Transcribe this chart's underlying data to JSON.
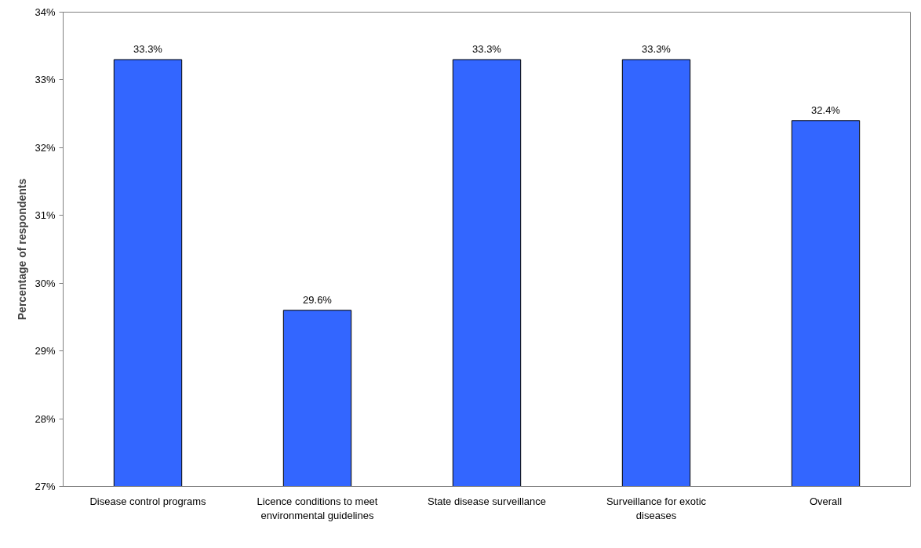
{
  "chart_data": {
    "type": "bar",
    "ylabel": "Percentage of respondents",
    "categories": [
      "Disease control programs",
      "Licence conditions to meet environmental guidelines",
      "State disease surveillance",
      "Surveillance for exotic diseases",
      "Overall"
    ],
    "values": [
      33.3,
      29.6,
      33.3,
      33.3,
      32.4
    ],
    "value_labels": [
      "33.3%",
      "29.6%",
      "33.3%",
      "33.3%",
      "32.4%"
    ],
    "color": "#3366ff",
    "ylim": [
      27,
      34
    ],
    "yticks": [
      {
        "value": 27,
        "label": "27%"
      },
      {
        "value": 28,
        "label": "28%"
      },
      {
        "value": 29,
        "label": "29%"
      },
      {
        "value": 30,
        "label": "30%"
      },
      {
        "value": 31,
        "label": "31%"
      },
      {
        "value": 32,
        "label": "32%"
      },
      {
        "value": 33,
        "label": "33%"
      },
      {
        "value": 34,
        "label": "34%"
      }
    ],
    "grid": false
  }
}
